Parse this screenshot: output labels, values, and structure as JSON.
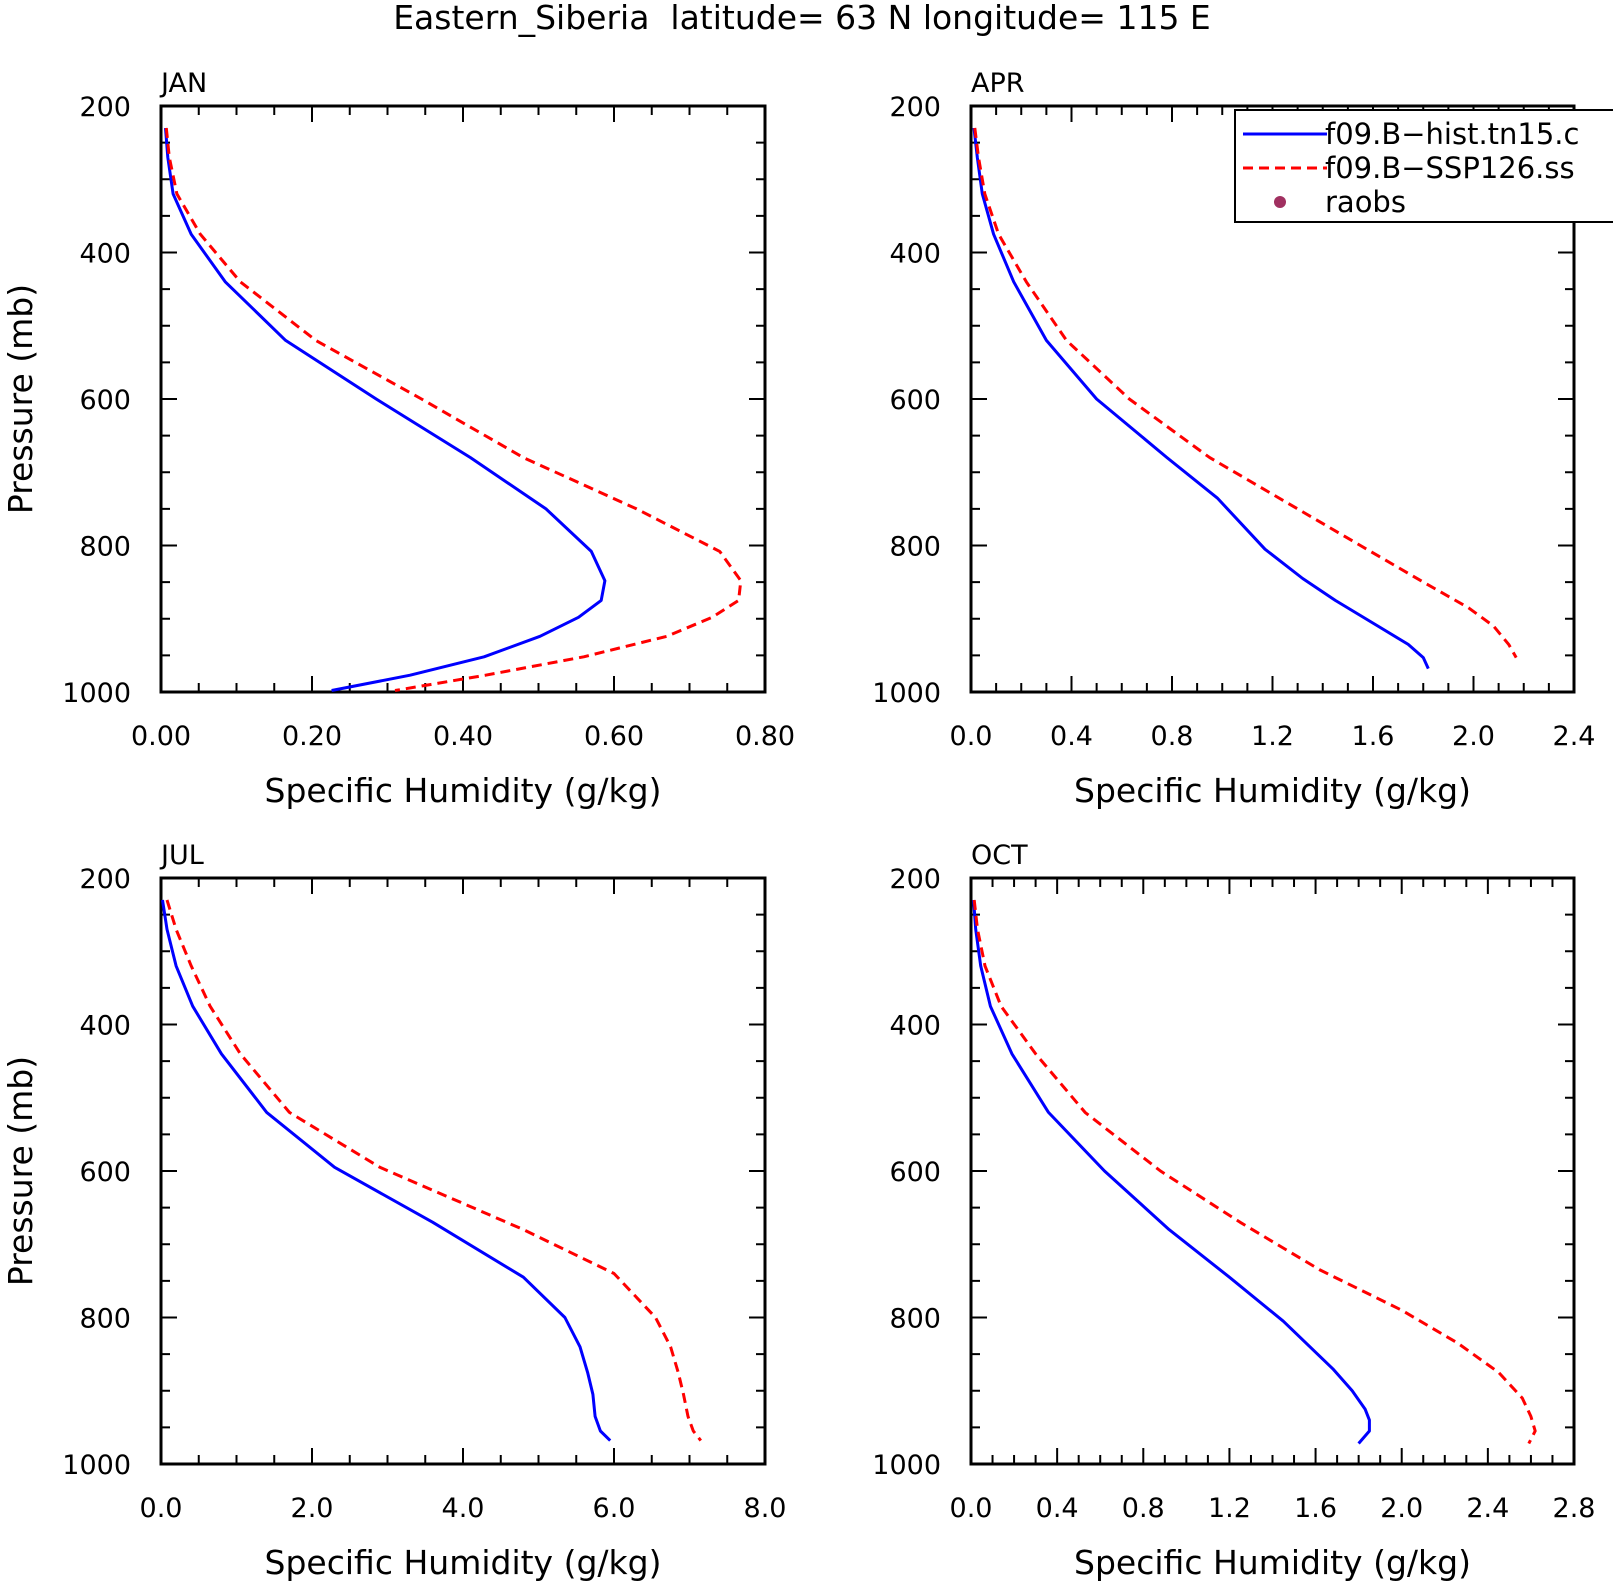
{
  "title": "Eastern_Siberia  latitude= 63 N longitude= 115 E",
  "legend": {
    "placement": "top-right of APR panel",
    "entries": [
      {
        "label": "f09.B−hist.tn15.c",
        "style": "solid-line",
        "color": "#0000ff"
      },
      {
        "label": "f09.B−SSP126.ss",
        "style": "dashed-line",
        "color": "#ff0000"
      },
      {
        "label": "raobs",
        "style": "dot",
        "color": "#a03060"
      }
    ]
  },
  "chart_data": [
    {
      "type": "line",
      "panel_label": "JAN",
      "xlabel": "Specific Humidity (g/kg)",
      "ylabel": "Pressure (mb)",
      "xlim": [
        0,
        0.8
      ],
      "ylim": [
        200,
        1000
      ],
      "y_inverted": true,
      "xticks": [
        "0.00",
        "0.20",
        "0.40",
        "0.60",
        "0.80"
      ],
      "yticks": [
        "200",
        "400",
        "600",
        "800",
        "1000"
      ],
      "series": [
        {
          "name": "f09.B−hist.tn15.c",
          "color": "#0000ff",
          "dash": "solid",
          "points": [
            [
              0.006,
              230
            ],
            [
              0.009,
              270
            ],
            [
              0.016,
              320
            ],
            [
              0.04,
              375
            ],
            [
              0.085,
              440
            ],
            [
              0.165,
              520
            ],
            [
              0.285,
              600
            ],
            [
              0.41,
              680
            ],
            [
              0.51,
              750
            ],
            [
              0.57,
              808
            ],
            [
              0.588,
              848
            ],
            [
              0.583,
              875
            ],
            [
              0.553,
              898
            ],
            [
              0.502,
              924
            ],
            [
              0.428,
              952
            ],
            [
              0.33,
              977
            ],
            [
              0.226,
              998
            ]
          ]
        },
        {
          "name": "f09.B−SSP126.ss",
          "color": "#ff0000",
          "dash": "dashed",
          "points": [
            [
              0.007,
              230
            ],
            [
              0.011,
              270
            ],
            [
              0.021,
              320
            ],
            [
              0.052,
              375
            ],
            [
              0.105,
              440
            ],
            [
              0.205,
              520
            ],
            [
              0.345,
              600
            ],
            [
              0.48,
              680
            ],
            [
              0.63,
              750
            ],
            [
              0.74,
              808
            ],
            [
              0.768,
              848
            ],
            [
              0.765,
              875
            ],
            [
              0.73,
              898
            ],
            [
              0.67,
              924
            ],
            [
              0.56,
              952
            ],
            [
              0.43,
              977
            ],
            [
              0.31,
              998
            ]
          ]
        }
      ]
    },
    {
      "type": "line",
      "panel_label": "APR",
      "xlabel": "Specific Humidity (g/kg)",
      "ylabel": "",
      "xlim": [
        0,
        2.4
      ],
      "ylim": [
        200,
        1000
      ],
      "y_inverted": true,
      "xticks": [
        "0.0",
        "0.4",
        "0.8",
        "1.2",
        "1.6",
        "2.0",
        "2.4"
      ],
      "yticks": [
        "200",
        "400",
        "600",
        "800",
        "1000"
      ],
      "series": [
        {
          "name": "f09.B−hist.tn15.c",
          "color": "#0000ff",
          "dash": "solid",
          "points": [
            [
              0.012,
              230
            ],
            [
              0.025,
              270
            ],
            [
              0.045,
              320
            ],
            [
              0.09,
              375
            ],
            [
              0.17,
              440
            ],
            [
              0.3,
              520
            ],
            [
              0.5,
              600
            ],
            [
              0.78,
              680
            ],
            [
              0.98,
              735
            ],
            [
              1.17,
              805
            ],
            [
              1.32,
              845
            ],
            [
              1.45,
              875
            ],
            [
              1.62,
              910
            ],
            [
              1.74,
              935
            ],
            [
              1.8,
              953
            ],
            [
              1.82,
              968
            ]
          ]
        },
        {
          "name": "f09.B−SSP126.ss",
          "color": "#ff0000",
          "dash": "dashed",
          "points": [
            [
              0.015,
              230
            ],
            [
              0.03,
              270
            ],
            [
              0.055,
              320
            ],
            [
              0.11,
              375
            ],
            [
              0.22,
              440
            ],
            [
              0.38,
              520
            ],
            [
              0.63,
              600
            ],
            [
              0.95,
              680
            ],
            [
              1.25,
              740
            ],
            [
              1.55,
              800
            ],
            [
              1.8,
              850
            ],
            [
              1.98,
              885
            ],
            [
              2.08,
              910
            ],
            [
              2.14,
              935
            ],
            [
              2.17,
              953
            ]
          ]
        }
      ]
    },
    {
      "type": "line",
      "panel_label": "JUL",
      "xlabel": "Specific Humidity (g/kg)",
      "ylabel": "Pressure (mb)",
      "xlim": [
        0,
        8
      ],
      "ylim": [
        200,
        1000
      ],
      "y_inverted": true,
      "xticks": [
        "0.0",
        "2.0",
        "4.0",
        "6.0",
        "8.0"
      ],
      "yticks": [
        "200",
        "400",
        "600",
        "800",
        "1000"
      ],
      "series": [
        {
          "name": "f09.B−hist.tn15.c",
          "color": "#0000ff",
          "dash": "solid",
          "points": [
            [
              0.02,
              230
            ],
            [
              0.08,
              270
            ],
            [
              0.2,
              320
            ],
            [
              0.42,
              375
            ],
            [
              0.8,
              440
            ],
            [
              1.4,
              520
            ],
            [
              2.3,
              595
            ],
            [
              3.6,
              670
            ],
            [
              4.8,
              745
            ],
            [
              5.35,
              800
            ],
            [
              5.55,
              840
            ],
            [
              5.65,
              875
            ],
            [
              5.72,
              905
            ],
            [
              5.75,
              935
            ],
            [
              5.82,
              955
            ],
            [
              5.95,
              968
            ]
          ]
        },
        {
          "name": "f09.B−SSP126.ss",
          "color": "#ff0000",
          "dash": "dashed",
          "points": [
            [
              0.08,
              230
            ],
            [
              0.2,
              270
            ],
            [
              0.4,
              320
            ],
            [
              0.65,
              375
            ],
            [
              1.05,
              440
            ],
            [
              1.7,
              520
            ],
            [
              2.9,
              595
            ],
            [
              4.8,
              680
            ],
            [
              6.0,
              740
            ],
            [
              6.55,
              800
            ],
            [
              6.75,
              840
            ],
            [
              6.85,
              875
            ],
            [
              6.92,
              905
            ],
            [
              6.98,
              935
            ],
            [
              7.05,
              955
            ],
            [
              7.15,
              968
            ]
          ]
        }
      ]
    },
    {
      "type": "line",
      "panel_label": "OCT",
      "xlabel": "Specific Humidity (g/kg)",
      "ylabel": "",
      "xlim": [
        0,
        2.8
      ],
      "ylim": [
        200,
        1000
      ],
      "y_inverted": true,
      "xticks": [
        "0.0",
        "0.4",
        "0.8",
        "1.2",
        "1.6",
        "2.0",
        "2.4",
        "2.8"
      ],
      "yticks": [
        "200",
        "400",
        "600",
        "800",
        "1000"
      ],
      "series": [
        {
          "name": "f09.B−hist.tn15.c",
          "color": "#0000ff",
          "dash": "solid",
          "points": [
            [
              0.012,
              230
            ],
            [
              0.022,
              270
            ],
            [
              0.045,
              320
            ],
            [
              0.09,
              375
            ],
            [
              0.19,
              440
            ],
            [
              0.36,
              520
            ],
            [
              0.62,
              600
            ],
            [
              0.92,
              680
            ],
            [
              1.2,
              745
            ],
            [
              1.45,
              805
            ],
            [
              1.68,
              870
            ],
            [
              1.77,
              900
            ],
            [
              1.83,
              925
            ],
            [
              1.85,
              940
            ],
            [
              1.85,
              955
            ],
            [
              1.8,
              972
            ]
          ]
        },
        {
          "name": "f09.B−SSP126.ss",
          "color": "#ff0000",
          "dash": "dashed",
          "points": [
            [
              0.015,
              230
            ],
            [
              0.03,
              270
            ],
            [
              0.065,
              320
            ],
            [
              0.14,
              375
            ],
            [
              0.3,
              440
            ],
            [
              0.53,
              520
            ],
            [
              0.88,
              600
            ],
            [
              1.25,
              670
            ],
            [
              1.62,
              735
            ],
            [
              2.0,
              790
            ],
            [
              2.26,
              835
            ],
            [
              2.45,
              875
            ],
            [
              2.56,
              910
            ],
            [
              2.6,
              935
            ],
            [
              2.62,
              955
            ],
            [
              2.59,
              972
            ]
          ]
        }
      ]
    }
  ]
}
